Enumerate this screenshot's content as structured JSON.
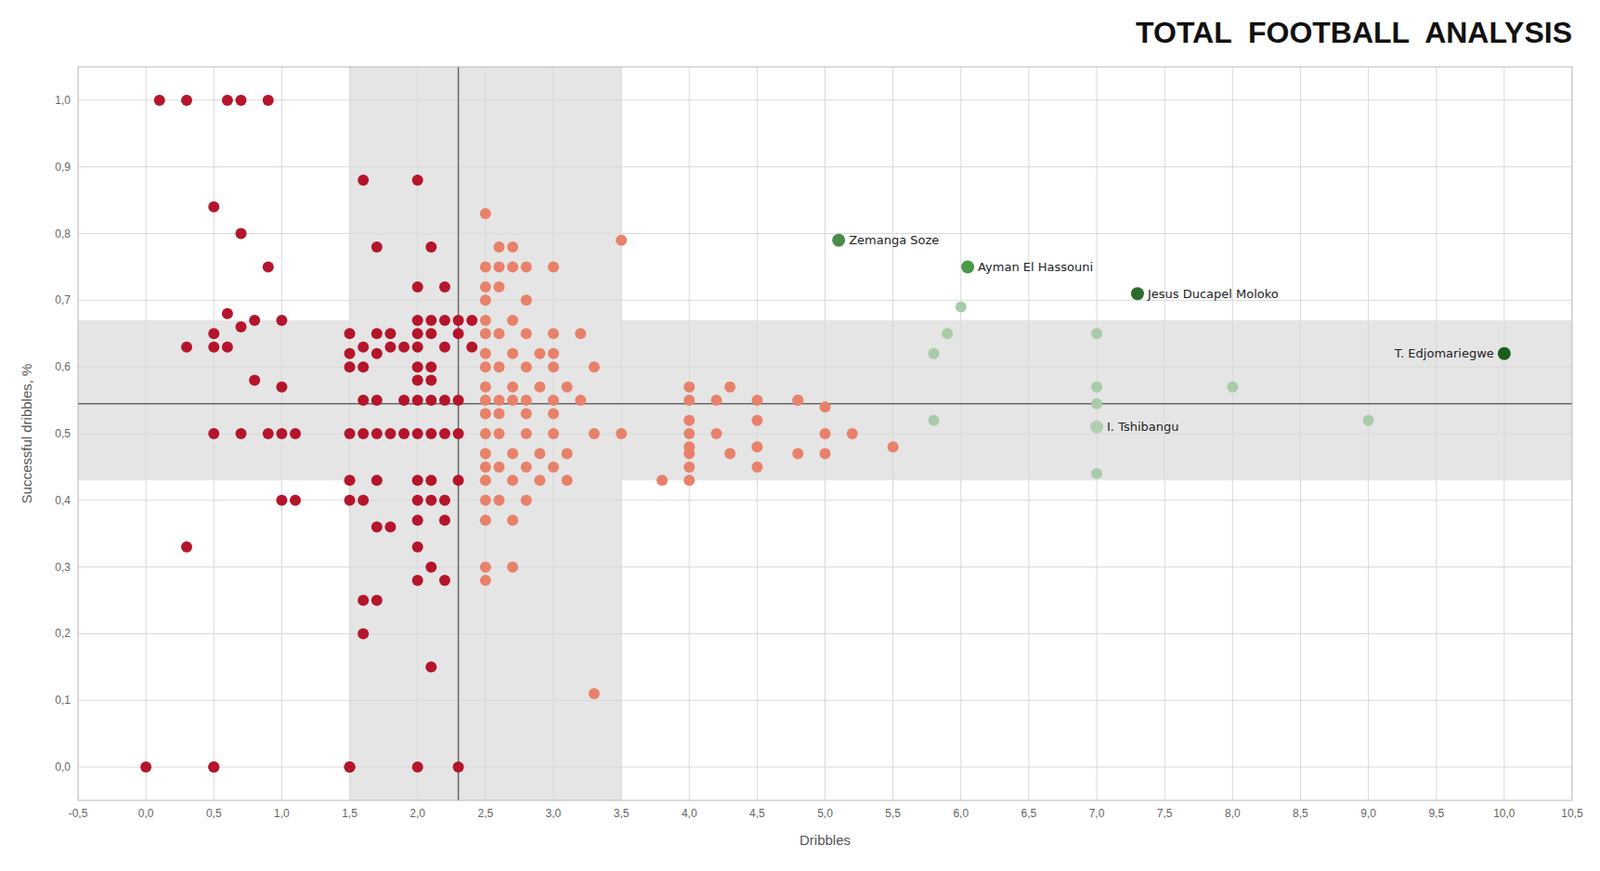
{
  "chart_data": {
    "type": "scatter",
    "title": "TOTAL  FOOTBALL  ANALYSIS",
    "x_label": "Dribbles",
    "y_label": "Successful dribbles, %",
    "xlim": [
      -0.5,
      10.5
    ],
    "ylim": [
      -0.05,
      1.05
    ],
    "xticks": [
      {
        "value": -0.5,
        "label": "-0,5"
      },
      {
        "value": 0.0,
        "label": "0,0"
      },
      {
        "value": 0.5,
        "label": "0,5"
      },
      {
        "value": 1.0,
        "label": "1,0"
      },
      {
        "value": 1.5,
        "label": "1,5"
      },
      {
        "value": 2.0,
        "label": "2,0"
      },
      {
        "value": 2.5,
        "label": "2,5"
      },
      {
        "value": 3.0,
        "label": "3,0"
      },
      {
        "value": 3.5,
        "label": "3,5"
      },
      {
        "value": 4.0,
        "label": "4,0"
      },
      {
        "value": 4.5,
        "label": "4,5"
      },
      {
        "value": 5.0,
        "label": "5,0"
      },
      {
        "value": 5.5,
        "label": "5,5"
      },
      {
        "value": 6.0,
        "label": "6,0"
      },
      {
        "value": 6.5,
        "label": "6,5"
      },
      {
        "value": 7.0,
        "label": "7,0"
      },
      {
        "value": 7.5,
        "label": "7,5"
      },
      {
        "value": 8.0,
        "label": "8,0"
      },
      {
        "value": 8.5,
        "label": "8,5"
      },
      {
        "value": 9.0,
        "label": "9,0"
      },
      {
        "value": 9.5,
        "label": "9,5"
      },
      {
        "value": 10.0,
        "label": "10,0"
      },
      {
        "value": 10.5,
        "label": "10,5"
      }
    ],
    "yticks": [
      {
        "value": 0.0,
        "label": "0,0"
      },
      {
        "value": 0.1,
        "label": "0,1"
      },
      {
        "value": 0.2,
        "label": "0,2"
      },
      {
        "value": 0.3,
        "label": "0,3"
      },
      {
        "value": 0.4,
        "label": "0,4"
      },
      {
        "value": 0.5,
        "label": "0,5"
      },
      {
        "value": 0.6,
        "label": "0,6"
      },
      {
        "value": 0.7,
        "label": "0,7"
      },
      {
        "value": 0.8,
        "label": "0,8"
      },
      {
        "value": 0.9,
        "label": "0,9"
      },
      {
        "value": 1.0,
        "label": "1,0"
      }
    ],
    "grid": true,
    "bands": {
      "x": [
        1.5,
        3.5
      ],
      "y": [
        0.43,
        0.67
      ],
      "color": "#e5e5e5"
    },
    "reference_lines": {
      "x": 2.3,
      "y": 0.545,
      "color": "#666666"
    },
    "series": [
      {
        "color": "#b5152b",
        "x": [
          0.0,
          0.5,
          0.5,
          0.1,
          0.3,
          0.6,
          0.7,
          0.9,
          0.5,
          0.7,
          0.9,
          0.5,
          0.6,
          0.6,
          0.7,
          0.8,
          1.0,
          0.8,
          1.0,
          0.5,
          0.7,
          0.9,
          1.0,
          1.1,
          0.5,
          0.3,
          1.0,
          1.1,
          0.3,
          1.5,
          1.5,
          1.6,
          1.7,
          1.5,
          1.7,
          1.8,
          1.6,
          1.8,
          1.9,
          1.5,
          1.7,
          1.5,
          1.6,
          1.6,
          1.7,
          1.9,
          1.5,
          1.6,
          1.7,
          1.8,
          1.9,
          1.5,
          1.7,
          1.5,
          1.6,
          1.7,
          1.8,
          1.6,
          1.7,
          1.6,
          2.0,
          2.3,
          2.0,
          2.1,
          2.0,
          2.2,
          2.0,
          2.1,
          2.2,
          2.3,
          2.4,
          2.0,
          2.1,
          2.3,
          2.0,
          2.2,
          2.4,
          2.0,
          2.1,
          2.0,
          2.1,
          2.0,
          2.1,
          2.2,
          2.3,
          2.0,
          2.1,
          2.2,
          2.3,
          2.0,
          2.1,
          2.3,
          2.0,
          2.1,
          2.2,
          2.0,
          2.2,
          2.0,
          2.1,
          2.0,
          2.2,
          2.1
        ],
        "values": [
          0.0,
          0.0,
          0.0,
          1.0,
          1.0,
          1.0,
          1.0,
          1.0,
          0.84,
          0.8,
          0.75,
          0.65,
          0.68,
          0.63,
          0.66,
          0.67,
          0.67,
          0.58,
          0.57,
          0.5,
          0.5,
          0.5,
          0.5,
          0.5,
          0.63,
          0.63,
          0.4,
          0.4,
          0.33,
          0.0,
          0.0,
          0.88,
          0.78,
          0.65,
          0.65,
          0.65,
          0.63,
          0.63,
          0.63,
          0.62,
          0.62,
          0.6,
          0.6,
          0.55,
          0.55,
          0.55,
          0.5,
          0.5,
          0.5,
          0.5,
          0.5,
          0.43,
          0.43,
          0.4,
          0.4,
          0.36,
          0.36,
          0.25,
          0.25,
          0.2,
          0.0,
          0.0,
          0.88,
          0.78,
          0.72,
          0.72,
          0.67,
          0.67,
          0.67,
          0.67,
          0.67,
          0.65,
          0.65,
          0.65,
          0.63,
          0.63,
          0.63,
          0.6,
          0.6,
          0.58,
          0.58,
          0.55,
          0.55,
          0.55,
          0.55,
          0.5,
          0.5,
          0.5,
          0.5,
          0.43,
          0.43,
          0.43,
          0.4,
          0.4,
          0.4,
          0.37,
          0.37,
          0.33,
          0.3,
          0.28,
          0.28,
          0.15
        ]
      },
      {
        "color": "#e8816a",
        "x": [
          2.5,
          2.6,
          2.7,
          2.5,
          2.6,
          2.7,
          2.8,
          3.0,
          2.5,
          2.6,
          2.5,
          2.8,
          2.5,
          2.7,
          2.5,
          2.6,
          2.8,
          3.0,
          3.2,
          2.5,
          2.7,
          2.9,
          3.0,
          2.5,
          2.6,
          2.8,
          3.0,
          3.3,
          2.5,
          2.7,
          2.9,
          3.1,
          2.5,
          2.6,
          2.7,
          2.8,
          3.0,
          3.2,
          2.5,
          2.6,
          2.8,
          3.0,
          2.5,
          2.6,
          2.8,
          3.0,
          3.3,
          3.5,
          2.5,
          2.7,
          2.9,
          3.1,
          2.5,
          2.6,
          2.8,
          3.0,
          2.5,
          2.7,
          2.9,
          3.1,
          2.5,
          2.6,
          2.8,
          2.5,
          2.7,
          2.5,
          2.7,
          2.5,
          3.5,
          3.3,
          3.8,
          4.0,
          4.2,
          4.5,
          4.8,
          4.0,
          4.3,
          4.0,
          4.5,
          4.0,
          4.2,
          4.0,
          4.5,
          4.0,
          4.3,
          4.0,
          4.5,
          4.0,
          4.8,
          4.8,
          5.0,
          5.0,
          5.0,
          5.2,
          5.5
        ],
        "values": [
          0.83,
          0.78,
          0.78,
          0.75,
          0.75,
          0.75,
          0.75,
          0.75,
          0.72,
          0.72,
          0.7,
          0.7,
          0.67,
          0.67,
          0.65,
          0.65,
          0.65,
          0.65,
          0.65,
          0.62,
          0.62,
          0.62,
          0.62,
          0.6,
          0.6,
          0.6,
          0.6,
          0.6,
          0.57,
          0.57,
          0.57,
          0.57,
          0.55,
          0.55,
          0.55,
          0.55,
          0.55,
          0.55,
          0.53,
          0.53,
          0.53,
          0.53,
          0.5,
          0.5,
          0.5,
          0.5,
          0.5,
          0.5,
          0.47,
          0.47,
          0.47,
          0.47,
          0.45,
          0.45,
          0.45,
          0.45,
          0.43,
          0.43,
          0.43,
          0.43,
          0.4,
          0.4,
          0.4,
          0.37,
          0.37,
          0.3,
          0.3,
          0.28,
          0.79,
          0.11,
          0.43,
          0.55,
          0.55,
          0.55,
          0.55,
          0.57,
          0.57,
          0.52,
          0.52,
          0.5,
          0.5,
          0.48,
          0.48,
          0.47,
          0.47,
          0.45,
          0.45,
          0.43,
          0.47,
          0.55,
          0.54,
          0.5,
          0.47,
          0.5,
          0.48
        ]
      },
      {
        "color": "#a8cca8",
        "x": [
          5.8,
          5.8,
          5.9,
          6.0,
          7.0,
          7.0,
          7.0,
          7.0,
          8.0,
          9.0
        ],
        "values": [
          0.52,
          0.62,
          0.65,
          0.69,
          0.65,
          0.57,
          0.545,
          0.44,
          0.57,
          0.52
        ]
      },
      {
        "colors": [
          "#4a8a4a",
          "#4a9a4a",
          "#2d6b2d",
          "#b0d0b0",
          "#1a5c1a"
        ],
        "x": [
          5.1,
          6.05,
          7.3,
          7.0,
          10.0
        ],
        "values": [
          0.79,
          0.75,
          0.71,
          0.51,
          0.62
        ],
        "labels": [
          "Zemanga Soze",
          "Ayman El Hassouni",
          "Jesus Ducapel Moloko",
          "I. Tshibangu",
          "T. Edjomariegwe"
        ]
      }
    ]
  }
}
